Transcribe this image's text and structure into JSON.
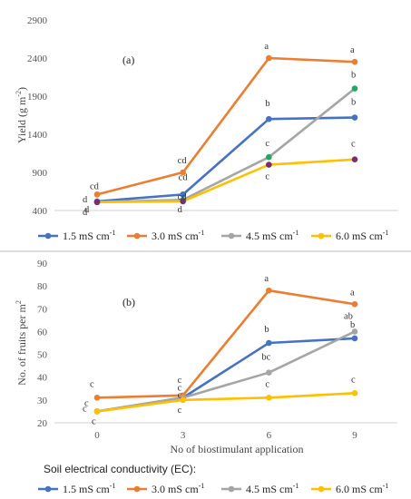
{
  "legend_title": "Soil electrical conductivity (EC):",
  "series_meta": [
    {
      "name": "1.5 mS cm",
      "sup": "-1",
      "color": "#4472C4"
    },
    {
      "name": "3.0 mS cm",
      "sup": "-1",
      "color": "#ED7D31"
    },
    {
      "name": "4.5 mS cm",
      "sup": "-1",
      "color": "#A5A5A5"
    },
    {
      "name": "6.0 mS cm",
      "sup": "-1",
      "color": "#FFC000"
    }
  ],
  "chart_data": [
    {
      "type": "line",
      "title": "(a)",
      "ylabel": "Yield (g m-2)",
      "ylabel_main": "Yield (g m",
      "ylabel_sup": "-2",
      "ylabel_end": ")",
      "xlabel": "",
      "x": [
        0,
        3,
        6,
        9
      ],
      "xticks_shown": false,
      "ylim": [
        400,
        2900
      ],
      "yticks": [
        400,
        900,
        1400,
        1900,
        2400,
        2900
      ],
      "grid": false,
      "legend_position": "bottom",
      "series": [
        {
          "name": "1.5 mS cm-1",
          "values": [
            520,
            610,
            1600,
            1620
          ],
          "marker": "#4472C4",
          "labels": [
            "d",
            "cd",
            "b",
            "b"
          ]
        },
        {
          "name": "3.0 mS cm-1",
          "values": [
            610,
            900,
            2400,
            2350
          ],
          "marker": "#ED7D31",
          "labels": [
            "cd",
            "cd",
            "a",
            "a"
          ]
        },
        {
          "name": "4.5 mS cm-1",
          "values": [
            510,
            540,
            1100,
            2000
          ],
          "marker": "#1FA85E",
          "labels": [
            "d",
            "cd",
            "c",
            "b"
          ]
        },
        {
          "name": "6.0 mS cm-1",
          "values": [
            510,
            520,
            1000,
            1070
          ],
          "marker": "#7B2D6B",
          "labels": [
            "d",
            "d",
            "c",
            "c"
          ]
        }
      ]
    },
    {
      "type": "line",
      "title": "(b)",
      "ylabel": "No. of fruits per m2",
      "ylabel_main": "No. of fruits per m",
      "ylabel_sup": "2",
      "xlabel": "No of biostimulant application",
      "x": [
        0,
        3,
        6,
        9
      ],
      "xticks": [
        "0",
        "3",
        "6",
        "9"
      ],
      "ylim": [
        20,
        90
      ],
      "yticks": [
        20,
        30,
        40,
        50,
        60,
        70,
        80,
        90
      ],
      "grid": false,
      "legend_position": "bottom",
      "series": [
        {
          "name": "1.5 mS cm-1",
          "values": [
            25,
            31,
            55,
            57
          ],
          "labels": [
            "c",
            "c",
            "b",
            "b"
          ]
        },
        {
          "name": "3.0 mS cm-1",
          "values": [
            31,
            32,
            78,
            72
          ],
          "labels": [
            "c",
            "c",
            "a",
            "a"
          ]
        },
        {
          "name": "4.5 mS cm-1",
          "values": [
            25,
            31,
            42,
            60
          ],
          "labels": [
            "c",
            "c",
            "bc",
            "ab"
          ]
        },
        {
          "name": "6.0 mS cm-1",
          "values": [
            25,
            30,
            31,
            33
          ],
          "labels": [
            "c",
            "c",
            "c",
            "c"
          ]
        }
      ]
    }
  ]
}
